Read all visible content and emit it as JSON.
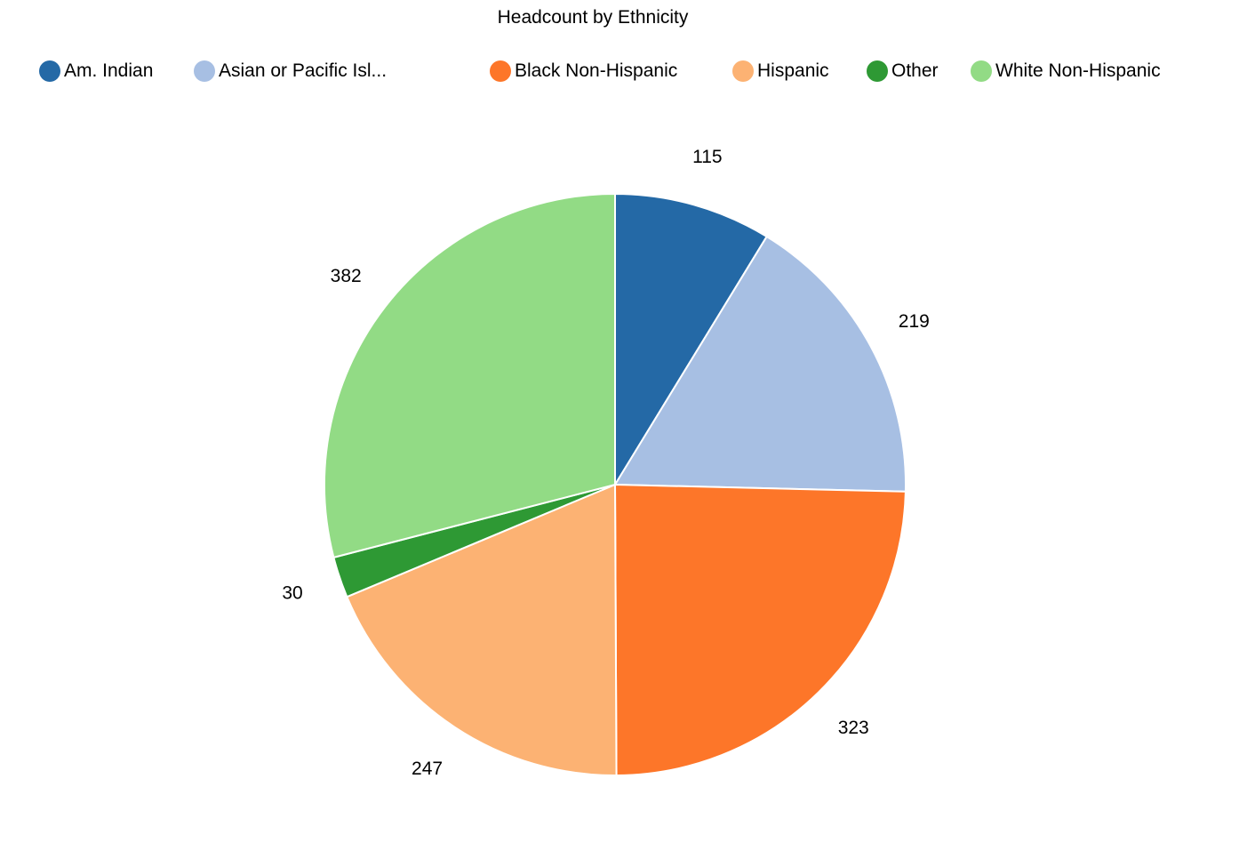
{
  "chart_data": {
    "type": "pie",
    "title": "Headcount by Ethnicity",
    "legend_placement": "top",
    "slices": [
      {
        "name": "Am. Indian",
        "legend_label": "Am. Indian",
        "value": 115,
        "value_label": "115",
        "color": "#2469A6"
      },
      {
        "name": "Asian or Pacific Islander",
        "legend_label": "Asian or Pacific Isl...",
        "value": 219,
        "value_label": "219",
        "color": "#A7BFE3"
      },
      {
        "name": "Black Non-Hispanic",
        "legend_label": "Black Non-Hispanic",
        "value": 323,
        "value_label": "323",
        "color": "#FD7629"
      },
      {
        "name": "Hispanic",
        "legend_label": "Hispanic",
        "value": 247,
        "value_label": "247",
        "color": "#FCB273"
      },
      {
        "name": "Other",
        "legend_label": "Other",
        "value": 30,
        "value_label": "30",
        "color": "#2E9934"
      },
      {
        "name": "White Non-Hispanic",
        "legend_label": "White Non-Hispanic",
        "value": 382,
        "value_label": "382",
        "color": "#92DB85"
      }
    ]
  }
}
